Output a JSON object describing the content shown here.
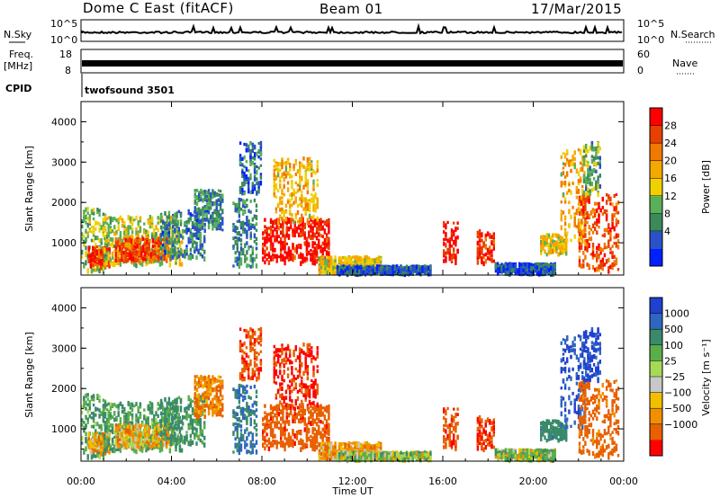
{
  "header": {
    "radar": "Dome C East (fitACF)",
    "beam": "Beam 01",
    "date": "17/Mar/2015"
  },
  "strips": {
    "nsky_label": "N.Sky",
    "nsky_ticks": [
      "10^5",
      "10^0"
    ],
    "nsearch_label": "N.Search",
    "nsearch_ticks": [
      "10^5",
      "10^0"
    ],
    "freq_label": "Freq.",
    "freq_unit": "[MHz]",
    "freq_ticks": [
      "18",
      "8"
    ],
    "nave_label": "Nave",
    "nave_ticks": [
      "60",
      "0"
    ],
    "cpid_label": "CPID",
    "cpid_value": "twofsound 3501"
  },
  "colors": {
    "power": [
      "#0020ff",
      "#2a52c8",
      "#3c8a5a",
      "#58b058",
      "#f0d000",
      "#f5a800",
      "#f07a00",
      "#e84000",
      "#ff0000"
    ],
    "velocity": [
      "#2040d0",
      "#2f66c0",
      "#3a8a6a",
      "#5aae4a",
      "#a8d858",
      "#c8c8c8",
      "#f0c000",
      "#f09000",
      "#e86000",
      "#ff0000"
    ]
  },
  "chart_data": [
    {
      "type": "heatmap",
      "ylabel": "Slant Range [km]",
      "y_ticks": [
        "4000",
        "3000",
        "2000",
        "1000"
      ],
      "ylim": [
        200,
        4500
      ],
      "colorbar_label": "Power [dB]",
      "colorbar_ticks": [
        "28",
        "24",
        "20",
        "16",
        "12",
        "8",
        "4"
      ],
      "clim": [
        0,
        30
      ]
    },
    {
      "type": "heatmap",
      "ylabel": "Slant Range [km]",
      "y_ticks": [
        "4000",
        "3000",
        "2000",
        "1000"
      ],
      "ylim": [
        200,
        4500
      ],
      "colorbar_label": "Velocity [m s⁻¹]",
      "colorbar_ticks": [
        "1000",
        "500",
        "100",
        "25",
        "−25",
        "−100",
        "−500",
        "−1000"
      ],
      "clim": [
        -1000,
        1000
      ]
    }
  ],
  "x_axis": {
    "label": "Time UT",
    "ticks": [
      "00:00",
      "04:00",
      "08:00",
      "12:00",
      "16:00",
      "20:00",
      "00:00"
    ],
    "xlim": [
      0,
      24
    ]
  },
  "echo_regions": [
    {
      "t0": 0.0,
      "t1": 1.2,
      "r0": 300,
      "r1": 1850,
      "power": 12,
      "vel": 150
    },
    {
      "t0": 0.3,
      "t1": 1.3,
      "r0": 400,
      "r1": 900,
      "power": 26,
      "vel": -80
    },
    {
      "t0": 1.0,
      "t1": 4.5,
      "r0": 450,
      "r1": 1650,
      "power": 14,
      "vel": 160
    },
    {
      "t0": 1.5,
      "t1": 4.0,
      "r0": 550,
      "r1": 1100,
      "power": 24,
      "vel": -60
    },
    {
      "t0": 3.5,
      "t1": 5.5,
      "r0": 600,
      "r1": 1800,
      "power": 8,
      "vel": 200
    },
    {
      "t0": 5.0,
      "t1": 6.3,
      "r0": 1300,
      "r1": 2300,
      "power": 8,
      "vel": -150
    },
    {
      "t0": 6.7,
      "t1": 7.8,
      "r0": 400,
      "r1": 2100,
      "power": 8,
      "vel": 400
    },
    {
      "t0": 7.0,
      "t1": 8.0,
      "r0": 2200,
      "r1": 3500,
      "power": 6,
      "vel": -350
    },
    {
      "t0": 8.0,
      "t1": 11.0,
      "r0": 500,
      "r1": 1600,
      "power": 28,
      "vel": -300
    },
    {
      "t0": 8.5,
      "t1": 10.5,
      "r0": 1500,
      "r1": 3100,
      "power": 18,
      "vel": -420
    },
    {
      "t0": 10.5,
      "t1": 13.3,
      "r0": 250,
      "r1": 650,
      "power": 16,
      "vel": -90
    },
    {
      "t0": 11.3,
      "t1": 15.5,
      "r0": 230,
      "r1": 420,
      "power": 5,
      "vel": 50
    },
    {
      "t0": 16.0,
      "t1": 16.7,
      "r0": 500,
      "r1": 1500,
      "power": 28,
      "vel": -350
    },
    {
      "t0": 17.5,
      "t1": 18.3,
      "r0": 500,
      "r1": 1300,
      "power": 26,
      "vel": -400
    },
    {
      "t0": 18.3,
      "t1": 21.0,
      "r0": 230,
      "r1": 480,
      "power": 4,
      "vel": 60
    },
    {
      "t0": 20.3,
      "t1": 21.5,
      "r0": 700,
      "r1": 1200,
      "power": 16,
      "vel": 300
    },
    {
      "t0": 21.2,
      "t1": 22.3,
      "r0": 1000,
      "r1": 3300,
      "power": 18,
      "vel": 700
    },
    {
      "t0": 22.0,
      "t1": 23.8,
      "r0": 300,
      "r1": 2200,
      "power": 24,
      "vel": -250
    },
    {
      "t0": 22.2,
      "t1": 23.0,
      "r0": 2200,
      "r1": 3500,
      "power": 10,
      "vel": 800
    }
  ]
}
